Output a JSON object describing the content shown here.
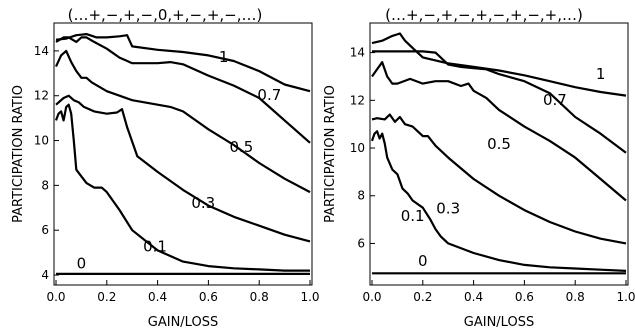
{
  "chart_data": [
    {
      "type": "line",
      "title": "(…+,−,+,−,0,+,−,+,−,…)",
      "xlabel": "GAIN/LOSS",
      "ylabel": "PARTICIPATION RATIO",
      "xlim": [
        0.0,
        1.0
      ],
      "ylim": [
        3.6,
        15.2
      ],
      "xticks": [
        0.0,
        0.2,
        0.4,
        0.6,
        0.8,
        1.0
      ],
      "xtick_labels": [
        "0.0",
        "0.2",
        "0.4",
        "0.6",
        "0.8",
        "1.0"
      ],
      "yticks": [
        4,
        6,
        8,
        10,
        12,
        14
      ],
      "ytick_labels": [
        "4",
        "6",
        "8",
        "10",
        "12",
        "14"
      ],
      "grid": false,
      "legend": "none",
      "series": [
        {
          "name": "1",
          "label_x": 0.66,
          "label_y": 13.5,
          "x": [
            0.0,
            0.04,
            0.08,
            0.12,
            0.16,
            0.2,
            0.25,
            0.28,
            0.3,
            0.4,
            0.5,
            0.6,
            0.7,
            0.8,
            0.9,
            1.0
          ],
          "y": [
            14.5,
            14.55,
            14.7,
            14.75,
            14.6,
            14.6,
            14.65,
            14.7,
            14.2,
            14.05,
            13.95,
            13.8,
            13.55,
            13.1,
            12.5,
            12.2
          ]
        },
        {
          "name": "0.7",
          "label_x": 0.84,
          "label_y": 11.8,
          "x": [
            0.0,
            0.03,
            0.05,
            0.08,
            0.1,
            0.12,
            0.15,
            0.2,
            0.25,
            0.3,
            0.35,
            0.4,
            0.45,
            0.5,
            0.6,
            0.7,
            0.8,
            0.9,
            1.0
          ],
          "y": [
            14.4,
            14.6,
            14.6,
            14.4,
            14.6,
            14.6,
            14.4,
            14.1,
            13.7,
            13.45,
            13.45,
            13.45,
            13.5,
            13.4,
            12.9,
            12.45,
            11.9,
            10.9,
            9.9
          ]
        },
        {
          "name": "0.5",
          "label_x": 0.73,
          "label_y": 9.5,
          "x": [
            0.0,
            0.02,
            0.04,
            0.06,
            0.08,
            0.1,
            0.12,
            0.14,
            0.2,
            0.3,
            0.35,
            0.4,
            0.45,
            0.5,
            0.6,
            0.7,
            0.8,
            0.9,
            1.0
          ],
          "y": [
            13.3,
            13.8,
            14.0,
            13.5,
            13.1,
            12.8,
            12.8,
            12.6,
            12.2,
            11.8,
            11.7,
            11.6,
            11.5,
            11.3,
            10.5,
            9.8,
            9.0,
            8.3,
            7.7
          ]
        },
        {
          "name": "0.3",
          "label_x": 0.58,
          "label_y": 7.0,
          "x": [
            0.0,
            0.03,
            0.05,
            0.07,
            0.09,
            0.11,
            0.15,
            0.2,
            0.24,
            0.26,
            0.28,
            0.32,
            0.4,
            0.5,
            0.6,
            0.7,
            0.8,
            0.9,
            1.0
          ],
          "y": [
            11.6,
            11.9,
            12.0,
            11.8,
            11.7,
            11.5,
            11.3,
            11.2,
            11.25,
            11.4,
            10.6,
            9.3,
            8.6,
            7.8,
            7.1,
            6.6,
            6.2,
            5.8,
            5.5
          ]
        },
        {
          "name": "0.1",
          "label_x": 0.39,
          "label_y": 5.05,
          "x": [
            0.0,
            0.01,
            0.02,
            0.03,
            0.04,
            0.05,
            0.06,
            0.07,
            0.08,
            0.1,
            0.12,
            0.15,
            0.18,
            0.2,
            0.25,
            0.3,
            0.4,
            0.5,
            0.6,
            0.7,
            0.8,
            0.9,
            1.0
          ],
          "y": [
            10.9,
            11.2,
            11.3,
            10.9,
            11.5,
            11.6,
            11.2,
            10.0,
            8.7,
            8.4,
            8.1,
            7.9,
            7.9,
            7.7,
            6.9,
            6.0,
            5.1,
            4.6,
            4.4,
            4.3,
            4.25,
            4.2,
            4.2
          ]
        },
        {
          "name": "0",
          "label_x": 0.1,
          "label_y": 4.3,
          "x": [
            0.0,
            1.0
          ],
          "y": [
            4.05,
            4.05
          ]
        }
      ]
    },
    {
      "type": "line",
      "title": "(…+,−,+,−,+,−,+,−,+,…)",
      "xlabel": "GAIN/LOSS",
      "ylabel": "PARTICIPATION RATIO",
      "xlim": [
        0.0,
        1.0
      ],
      "ylim": [
        4.3,
        15.2
      ],
      "xticks": [
        0.0,
        0.2,
        0.4,
        0.6,
        0.8,
        1.0
      ],
      "xtick_labels": [
        "0.0",
        "0.2",
        "0.4",
        "0.6",
        "0.8",
        "1.0"
      ],
      "yticks": [
        6,
        8,
        10,
        12,
        14
      ],
      "ytick_labels": [
        "6",
        "8",
        "10",
        "12",
        "14"
      ],
      "grid": false,
      "legend": "none",
      "series": [
        {
          "name": "1",
          "label_x": 0.9,
          "label_y": 12.9,
          "x": [
            0.0,
            0.04,
            0.08,
            0.11,
            0.13,
            0.16,
            0.2,
            0.3,
            0.4,
            0.5,
            0.6,
            0.7,
            0.8,
            0.9,
            1.0
          ],
          "y": [
            14.4,
            14.5,
            14.7,
            14.8,
            14.5,
            14.2,
            13.8,
            13.55,
            13.4,
            13.25,
            13.05,
            12.8,
            12.55,
            12.35,
            12.2
          ]
        },
        {
          "name": "0.7",
          "label_x": 0.72,
          "label_y": 11.8,
          "x": [
            0.0,
            0.05,
            0.1,
            0.15,
            0.2,
            0.25,
            0.3,
            0.35,
            0.4,
            0.45,
            0.5,
            0.6,
            0.7,
            0.8,
            0.9,
            1.0
          ],
          "y": [
            14.05,
            14.05,
            14.05,
            14.05,
            14.05,
            14.0,
            13.5,
            13.4,
            13.35,
            13.3,
            13.1,
            12.8,
            12.3,
            11.3,
            10.6,
            9.8
          ]
        },
        {
          "name": "0.5",
          "label_x": 0.5,
          "label_y": 9.95,
          "x": [
            0.0,
            0.02,
            0.04,
            0.06,
            0.08,
            0.1,
            0.15,
            0.2,
            0.25,
            0.3,
            0.35,
            0.38,
            0.4,
            0.45,
            0.5,
            0.6,
            0.7,
            0.8,
            0.9,
            1.0
          ],
          "y": [
            13.0,
            13.3,
            13.6,
            13.0,
            12.7,
            12.7,
            12.9,
            12.7,
            12.8,
            12.8,
            12.6,
            12.7,
            12.4,
            12.1,
            11.6,
            10.9,
            10.3,
            9.6,
            8.7,
            7.8
          ]
        },
        {
          "name": "0.3",
          "label_x": 0.3,
          "label_y": 7.25,
          "x": [
            0.0,
            0.02,
            0.05,
            0.07,
            0.09,
            0.11,
            0.13,
            0.16,
            0.18,
            0.2,
            0.22,
            0.25,
            0.3,
            0.4,
            0.5,
            0.6,
            0.7,
            0.8,
            0.9,
            1.0
          ],
          "y": [
            11.2,
            11.25,
            11.2,
            11.4,
            11.1,
            11.3,
            11.0,
            10.9,
            10.7,
            10.5,
            10.5,
            10.1,
            9.6,
            8.7,
            8.0,
            7.4,
            6.9,
            6.5,
            6.2,
            6.0
          ]
        },
        {
          "name": "0.1",
          "label_x": 0.16,
          "label_y": 6.95,
          "x": [
            0.0,
            0.01,
            0.02,
            0.03,
            0.04,
            0.05,
            0.06,
            0.08,
            0.1,
            0.12,
            0.14,
            0.16,
            0.2,
            0.23,
            0.25,
            0.27,
            0.3,
            0.4,
            0.5,
            0.6,
            0.7,
            0.8,
            0.9,
            1.0
          ],
          "y": [
            10.3,
            10.6,
            10.7,
            10.4,
            10.6,
            10.2,
            9.6,
            9.1,
            8.9,
            8.3,
            8.1,
            7.8,
            7.5,
            7.0,
            6.6,
            6.3,
            6.0,
            5.6,
            5.3,
            5.1,
            5.0,
            4.95,
            4.9,
            4.85
          ]
        },
        {
          "name": "0",
          "label_x": 0.2,
          "label_y": 5.05,
          "x": [
            0.0,
            1.0
          ],
          "y": [
            4.75,
            4.75
          ]
        }
      ]
    }
  ]
}
